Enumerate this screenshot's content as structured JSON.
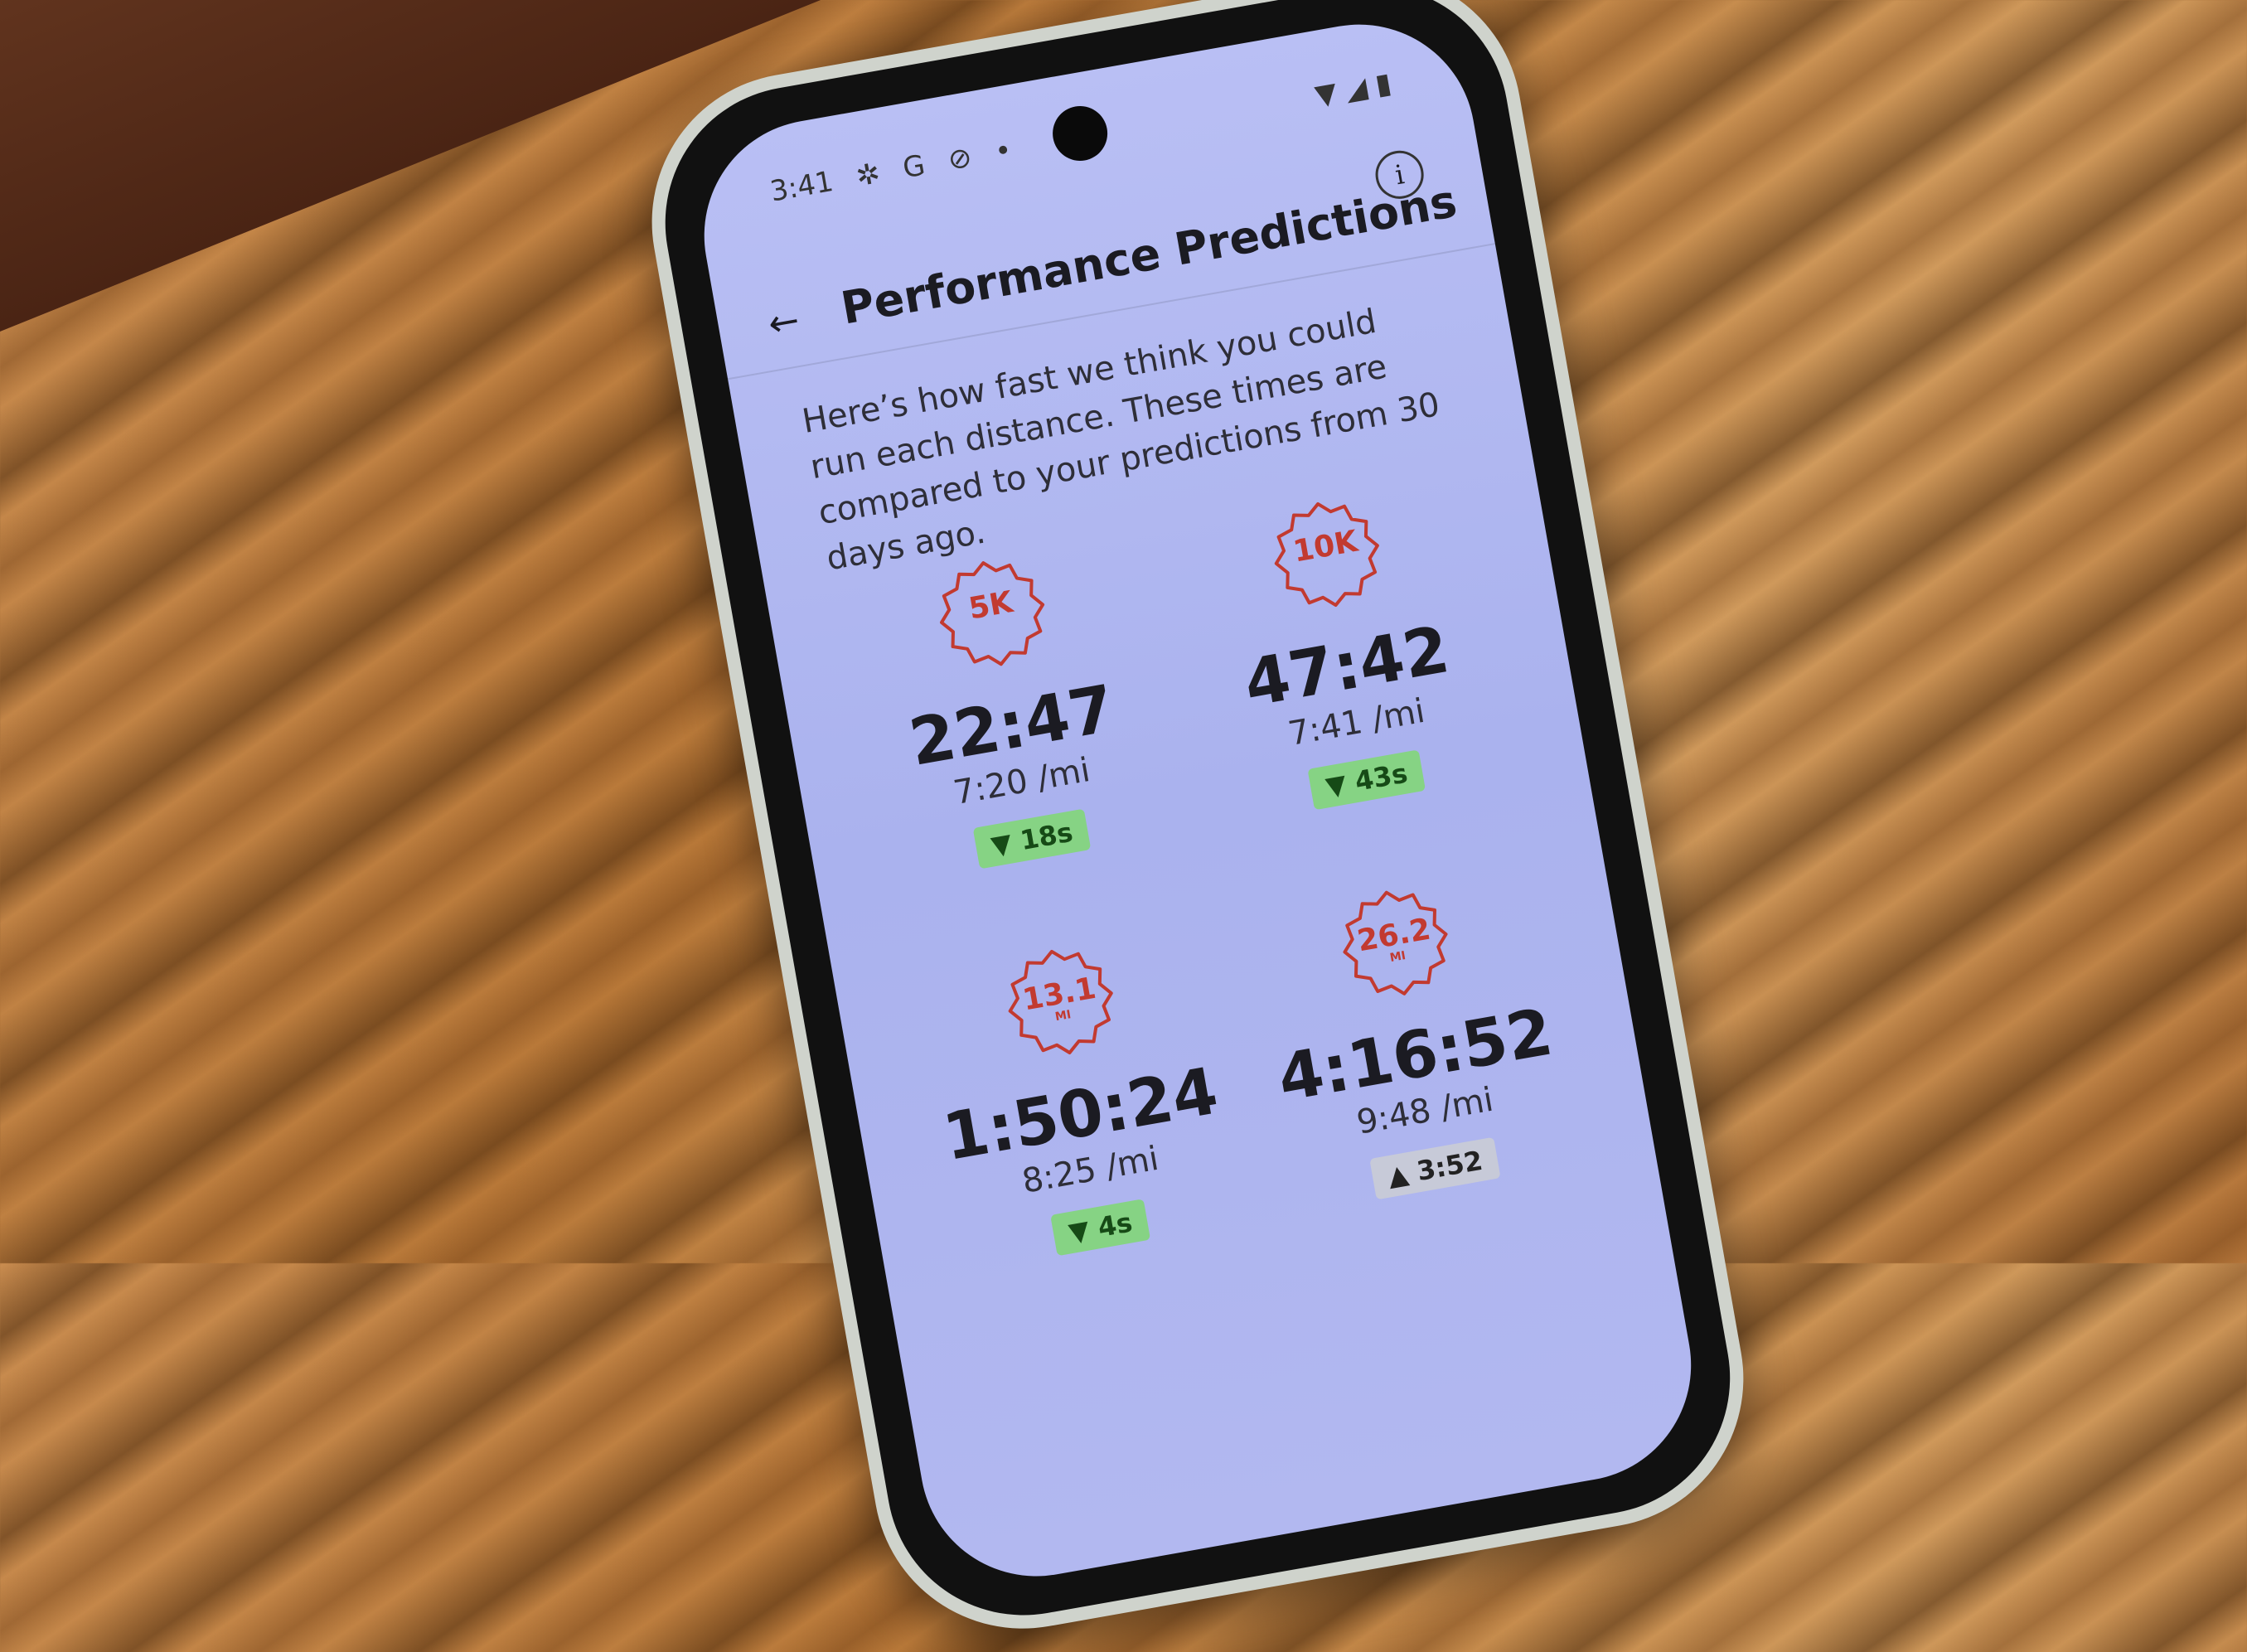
{
  "status_bar": {
    "time": "3:41",
    "icons": [
      "gear-icon",
      "google-icon",
      "blocked-icon",
      "dot-icon"
    ],
    "right_icons": [
      "wifi-icon",
      "signal-icon",
      "battery-icon"
    ]
  },
  "header": {
    "title": "Performance Predictions",
    "back_icon": "arrow-left-icon",
    "info_icon": "info-icon"
  },
  "description": "Here’s how fast we think you could run each distance. These times are compared to your predictions from 30 days ago.",
  "colors": {
    "badge": "#c23a30",
    "improved": "#86d384",
    "worse": "#c7cad8",
    "screen": "#b2b8f0"
  },
  "predictions": [
    {
      "distance": "5K",
      "unit": "",
      "time": "22:47",
      "pace": "7:20 /mi",
      "change": "18s",
      "direction": "down"
    },
    {
      "distance": "10K",
      "unit": "",
      "time": "47:42",
      "pace": "7:41 /mi",
      "change": "43s",
      "direction": "down"
    },
    {
      "distance": "13.1",
      "unit": "MI",
      "time": "1:50:24",
      "pace": "8:25 /mi",
      "change": "4s",
      "direction": "down"
    },
    {
      "distance": "26.2",
      "unit": "MI",
      "time": "4:16:52",
      "pace": "9:48 /mi",
      "change": "3:52",
      "direction": "up"
    }
  ]
}
